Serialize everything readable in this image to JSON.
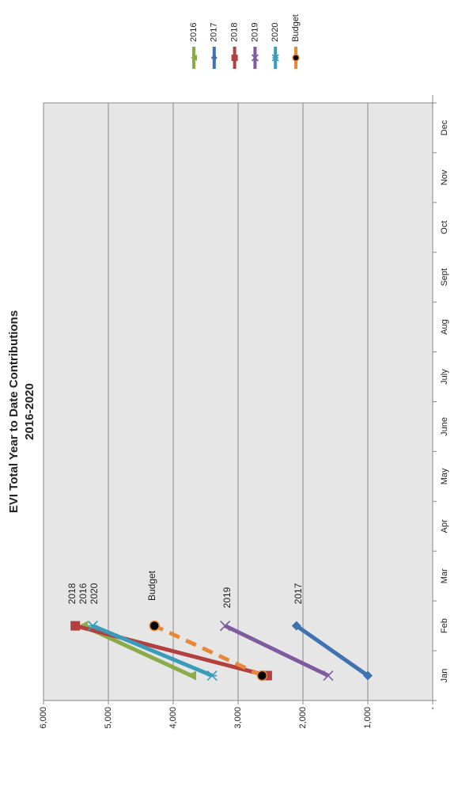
{
  "chart_data": {
    "type": "line",
    "title": "EVI Total Year to Date Contributions",
    "subtitle": "2016-2020",
    "categories": [
      "Jan",
      "Feb",
      "Mar",
      "Apr",
      "May",
      "June",
      "July",
      "Aug",
      "Sept",
      "Oct",
      "Nov",
      "Dec"
    ],
    "series": [
      {
        "name": "2016",
        "color": "#8aab4a",
        "marker": "triangle",
        "values": [
          3720,
          5390,
          null,
          null,
          null,
          null,
          null,
          null,
          null,
          null,
          null,
          null
        ]
      },
      {
        "name": "2017",
        "color": "#3f72b0",
        "marker": "diamond",
        "values": [
          1000,
          2100,
          null,
          null,
          null,
          null,
          null,
          null,
          null,
          null,
          null,
          null
        ]
      },
      {
        "name": "2018",
        "color": "#b2403e",
        "marker": "square",
        "values": [
          2550,
          5510,
          null,
          null,
          null,
          null,
          null,
          null,
          null,
          null,
          null,
          null
        ]
      },
      {
        "name": "2019",
        "color": "#7e5b9e",
        "marker": "x",
        "values": [
          1610,
          3200,
          null,
          null,
          null,
          null,
          null,
          null,
          null,
          null,
          null,
          null
        ]
      },
      {
        "name": "2020",
        "color": "#3a9cbb",
        "marker": "star",
        "values": [
          3400,
          5240,
          null,
          null,
          null,
          null,
          null,
          null,
          null,
          null,
          null,
          null
        ]
      },
      {
        "name": "Budget",
        "color": "#e8883a",
        "marker": "circle",
        "dashed": true,
        "values": [
          2630,
          4290,
          null,
          null,
          null,
          null,
          null,
          null,
          null,
          null,
          null,
          null
        ]
      }
    ],
    "annotations": [
      "2018",
      "2016",
      "2020",
      "Budget",
      "2019",
      "2017"
    ],
    "ylim": [
      0,
      6000
    ],
    "yticks": [
      {
        "value": 0,
        "label": "-"
      },
      {
        "value": 1000,
        "label": "1,000"
      },
      {
        "value": 2000,
        "label": "2,000"
      },
      {
        "value": 3000,
        "label": "3,000"
      },
      {
        "value": 4000,
        "label": "4,000"
      },
      {
        "value": 5000,
        "label": "5,000"
      },
      {
        "value": 6000,
        "label": "6,000"
      }
    ],
    "grid": true,
    "legend": "top-right"
  }
}
